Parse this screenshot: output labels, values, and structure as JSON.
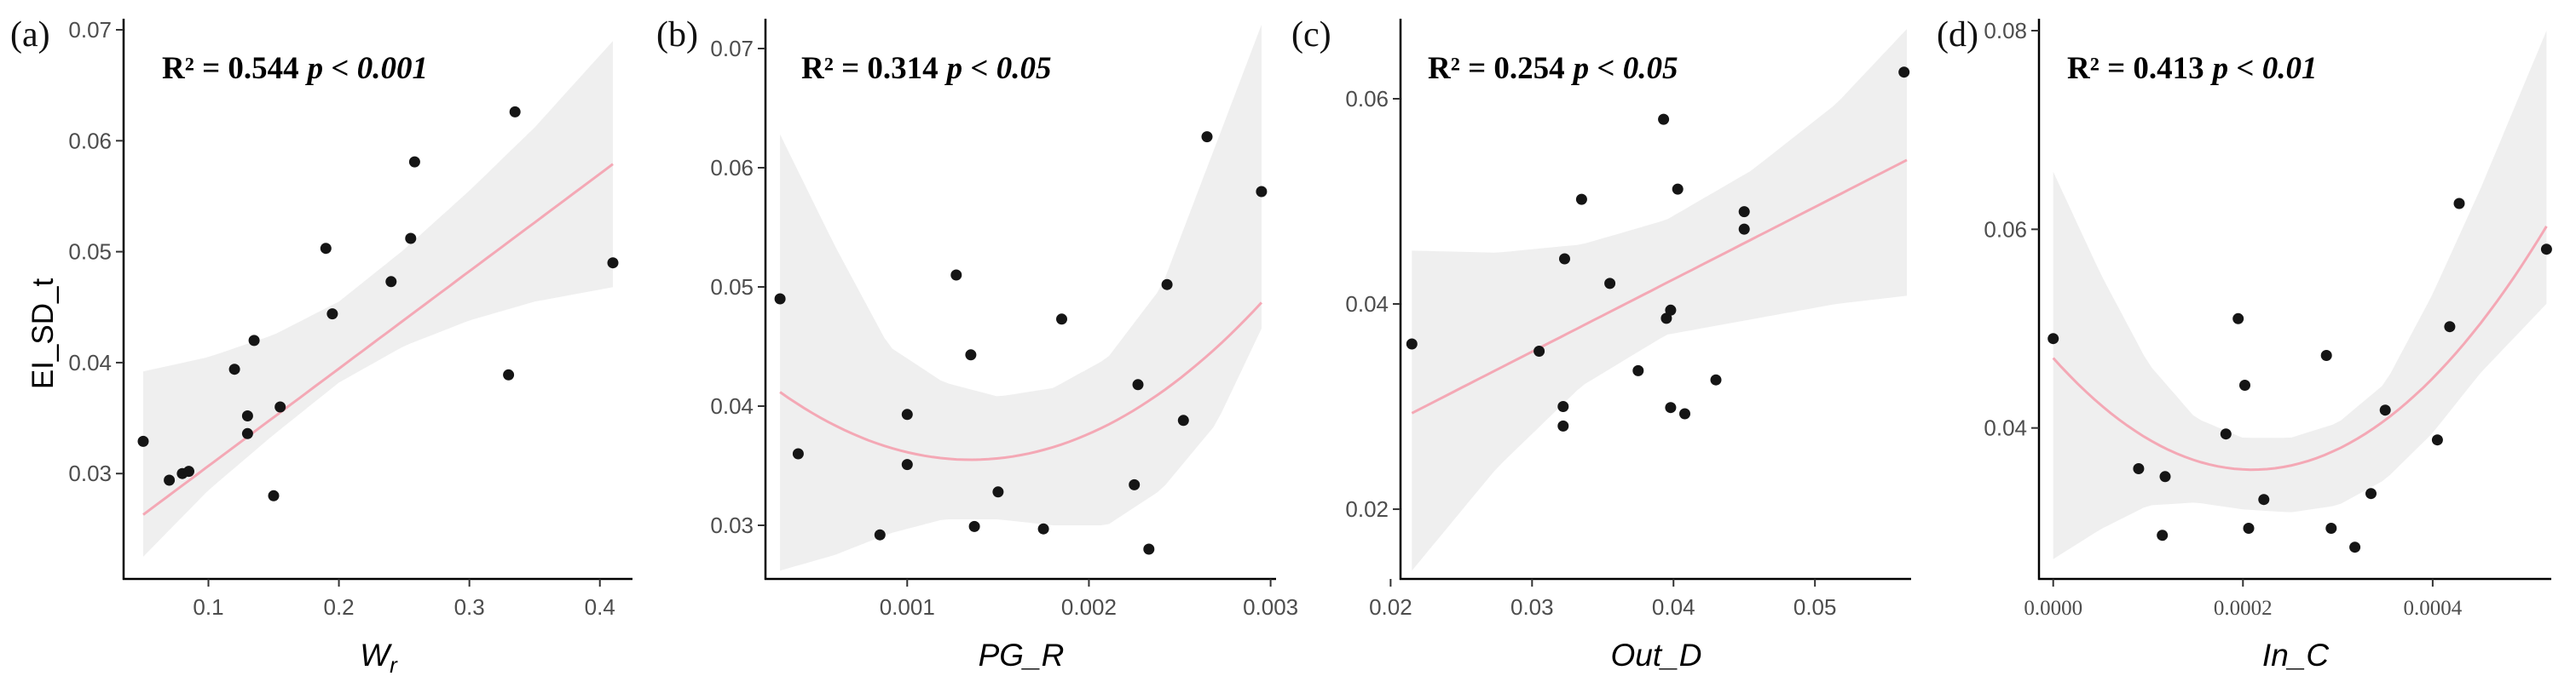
{
  "colors": {
    "background": "#ffffff",
    "band": "#efefef",
    "fit_line": "#f4a8b5",
    "point": "#151515",
    "axis": "#000000",
    "tick_text": "#4d4d4d"
  },
  "chart_data": [
    {
      "type": "scatter",
      "panel": "(a)",
      "stat_label": {
        "r2": "R² = 0.544",
        "p": "p < 0.001"
      },
      "xlabel": "W",
      "xlabel_sub": "r",
      "ylabel": "EI_SD_t",
      "xlim": [
        0.035,
        0.425
      ],
      "ylim": [
        0.0205,
        0.071
      ],
      "xticks": [
        0.1,
        0.2,
        0.3,
        0.4
      ],
      "xtick_labels": [
        "0.1",
        "0.2",
        "0.3",
        "0.4"
      ],
      "yticks": [
        0.03,
        0.04,
        0.05,
        0.06,
        0.07
      ],
      "ytick_labels": [
        "0.03",
        "0.04",
        "0.05",
        "0.06",
        "0.07"
      ],
      "fit": "linear",
      "fit_coeffs": [
        0.0219,
        0.0878
      ],
      "ci_x": [
        0.05,
        0.1,
        0.15,
        0.2,
        0.25,
        0.3,
        0.35,
        0.41
      ],
      "ci_lower": [
        0.0225,
        0.0285,
        0.0335,
        0.0382,
        0.0415,
        0.0438,
        0.0455,
        0.0468
      ],
      "ci_upper": [
        0.0392,
        0.0405,
        0.0425,
        0.0455,
        0.0502,
        0.0555,
        0.0612,
        0.069
      ],
      "points": {
        "x": [
          0.05,
          0.07,
          0.08,
          0.085,
          0.12,
          0.13,
          0.13,
          0.135,
          0.15,
          0.155,
          0.19,
          0.195,
          0.24,
          0.255,
          0.258,
          0.33,
          0.335,
          0.41
        ],
        "y": [
          0.0329,
          0.0294,
          0.03,
          0.0302,
          0.0394,
          0.0336,
          0.0352,
          0.042,
          0.028,
          0.036,
          0.0503,
          0.0444,
          0.0473,
          0.0512,
          0.0581,
          0.0389,
          0.0626,
          0.049
        ]
      }
    },
    {
      "type": "scatter",
      "panel": "(b)",
      "stat_label": {
        "r2": "R² = 0.314",
        "p": "p < 0.05"
      },
      "xlabel": "PG_R",
      "xlabel_sub": "",
      "ylabel": "",
      "xlim": [
        0.00022,
        0.00303
      ],
      "ylim": [
        0.0255,
        0.0725
      ],
      "xticks": [
        0.001,
        0.002,
        0.003
      ],
      "xtick_labels": [
        "0.001",
        "0.002",
        "0.003"
      ],
      "yticks": [
        0.03,
        0.04,
        0.05,
        0.06,
        0.07
      ],
      "ytick_labels": [
        "0.03",
        "0.04",
        "0.05",
        "0.06",
        "0.07"
      ],
      "fit": "quadratic",
      "fit_vertex": [
        0.00135,
        0.0355
      ],
      "fit_curvature": 5150,
      "ci_x": [
        0.0003,
        0.0006,
        0.0009,
        0.0012,
        0.0015,
        0.0018,
        0.0021,
        0.0024,
        0.0027,
        0.00295
      ],
      "ci_lower": [
        0.0262,
        0.0275,
        0.0293,
        0.0305,
        0.0305,
        0.03,
        0.03,
        0.033,
        0.0385,
        0.0465
      ],
      "ci_upper": [
        0.0628,
        0.0535,
        0.045,
        0.042,
        0.0408,
        0.0415,
        0.044,
        0.05,
        0.062,
        0.072
      ],
      "points": {
        "x": [
          0.0003,
          0.0004,
          0.00085,
          0.001,
          0.001,
          0.00127,
          0.00135,
          0.00137,
          0.0015,
          0.00175,
          0.00185,
          0.00225,
          0.00227,
          0.00233,
          0.00243,
          0.00252,
          0.00265,
          0.00295
        ],
        "y": [
          0.049,
          0.036,
          0.0292,
          0.0393,
          0.0351,
          0.051,
          0.0443,
          0.0299,
          0.0328,
          0.0297,
          0.0473,
          0.0334,
          0.0418,
          0.028,
          0.0502,
          0.0388,
          0.0626,
          0.058
        ]
      }
    },
    {
      "type": "scatter",
      "panel": "(c)",
      "stat_label": {
        "r2": "R² = 0.254",
        "p": "p < 0.05"
      },
      "xlabel": "Out_D",
      "xlabel_sub": "",
      "ylabel": "",
      "xlim": [
        0.0207,
        0.0568
      ],
      "ylim": [
        0.0132,
        0.0678
      ],
      "xticks": [
        0.02,
        0.03,
        0.04,
        0.05
      ],
      "xtick_labels": [
        "0.02",
        "0.03",
        "0.04",
        "0.05"
      ],
      "yticks": [
        0.02,
        0.04,
        0.06
      ],
      "ytick_labels": [
        "0.02",
        "0.04",
        "0.06"
      ],
      "fit": "linear",
      "fit_coeffs": [
        0.0142,
        0.705
      ],
      "ci_x": [
        0.0215,
        0.0275,
        0.0335,
        0.0395,
        0.0455,
        0.0515,
        0.0565
      ],
      "ci_lower": [
        0.014,
        0.024,
        0.032,
        0.037,
        0.0385,
        0.04,
        0.0408
      ],
      "ci_upper": [
        0.0452,
        0.045,
        0.0458,
        0.0482,
        0.053,
        0.0595,
        0.0668
      ],
      "points": {
        "x": [
          0.0215,
          0.0305,
          0.0322,
          0.0322,
          0.0323,
          0.0335,
          0.0355,
          0.0375,
          0.0393,
          0.0395,
          0.0398,
          0.0398,
          0.0403,
          0.0408,
          0.043,
          0.045,
          0.045,
          0.0563
        ],
        "y": [
          0.0361,
          0.0354,
          0.0281,
          0.03,
          0.0444,
          0.0502,
          0.042,
          0.0335,
          0.058,
          0.0386,
          0.0394,
          0.0299,
          0.0512,
          0.0293,
          0.0326,
          0.049,
          0.0473,
          0.0626
        ]
      }
    },
    {
      "type": "scatter",
      "panel": "(d)",
      "stat_label": {
        "r2": "R² = 0.413",
        "p": "p < 0.01"
      },
      "xlabel": "In_C",
      "xlabel_sub": "",
      "ylabel": "",
      "xlim": [
        -1.5e-05,
        0.000525
      ],
      "ylim": [
        0.0248,
        0.0812
      ],
      "xticks": [
        0.0,
        0.0002,
        0.0004
      ],
      "xtick_labels": [
        "0.0000",
        "0.0002",
        "0.0004"
      ],
      "yticks": [
        0.04,
        0.06,
        0.08
      ],
      "ytick_labels": [
        "0.04",
        "0.06",
        "0.08"
      ],
      "fit": "quadratic",
      "fit_vertex": [
        0.00021,
        0.0358
      ],
      "fit_curvature": 255000,
      "ci_x": [
        0.0,
        5e-05,
        0.0001,
        0.00015,
        0.0002,
        0.00025,
        0.0003,
        0.00035,
        0.0004,
        0.00045,
        0.00052
      ],
      "ci_lower": [
        0.0268,
        0.0298,
        0.0322,
        0.0325,
        0.0318,
        0.0315,
        0.0322,
        0.0348,
        0.0395,
        0.0455,
        0.0525
      ],
      "ci_upper": [
        0.0658,
        0.0555,
        0.0465,
        0.041,
        0.039,
        0.039,
        0.0405,
        0.0445,
        0.0535,
        0.064,
        0.08
      ],
      "points": {
        "x": [
          0.0,
          9e-05,
          0.000115,
          0.000118,
          0.000182,
          0.000195,
          0.000202,
          0.000206,
          0.000222,
          0.000288,
          0.000293,
          0.000318,
          0.000335,
          0.00035,
          0.000405,
          0.000418,
          0.000428,
          0.00052
        ],
        "y": [
          0.049,
          0.0359,
          0.0292,
          0.0351,
          0.0394,
          0.051,
          0.0443,
          0.0299,
          0.0328,
          0.0473,
          0.0299,
          0.028,
          0.0334,
          0.0418,
          0.0388,
          0.0502,
          0.0626,
          0.058
        ]
      }
    }
  ]
}
